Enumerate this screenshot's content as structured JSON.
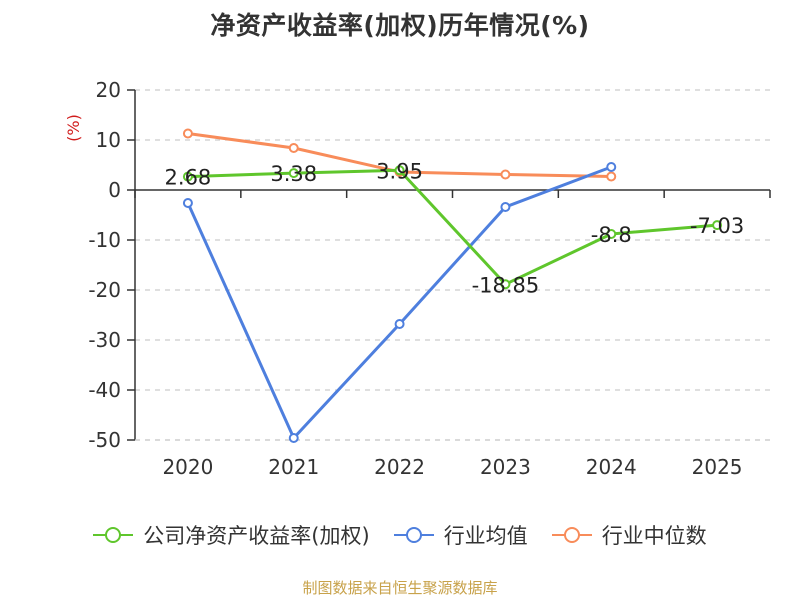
{
  "chart_data": {
    "type": "line",
    "title": "净资产收益率(加权)历年情况(%)",
    "ylabel": "(%)",
    "xlabel": "",
    "categories": [
      "2020",
      "2021",
      "2022",
      "2023",
      "2024",
      "2025"
    ],
    "ylim": [
      -50,
      20
    ],
    "yticks": [
      20,
      10,
      0,
      -10,
      -20,
      -30,
      -40,
      -50
    ],
    "grid": true,
    "legend_position": "bottom",
    "series": [
      {
        "name": "公司净资产收益率(加权)",
        "color": "#5fc62c",
        "values": [
          2.68,
          3.38,
          3.95,
          -18.85,
          -8.8,
          -7.03
        ],
        "labels": [
          "2.68",
          "3.38",
          "3.95",
          "-18.85",
          "-8.8",
          "-7.03"
        ]
      },
      {
        "name": "行业均值",
        "color": "#4e7fde",
        "values": [
          -2.6,
          -49.6,
          -26.8,
          -3.4,
          4.6,
          null
        ]
      },
      {
        "name": "行业中位数",
        "color": "#f88c5a",
        "values": [
          11.3,
          8.4,
          3.6,
          3.1,
          2.7,
          null
        ]
      }
    ]
  },
  "source": "制图数据来自恒生聚源数据库"
}
